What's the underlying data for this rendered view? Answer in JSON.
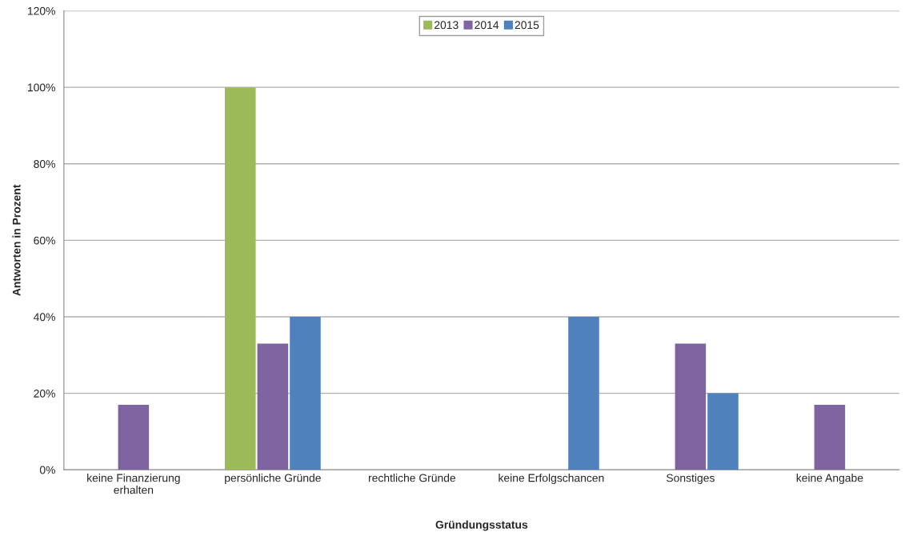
{
  "chart_data": {
    "type": "bar",
    "xlabel": "Gründungsstatus",
    "ylabel": "Antworten in Prozent",
    "categories": [
      "keine Finanzierung\nerhalten",
      "persönliche Gründe",
      "rechtliche Gründe",
      "keine Erfolgschancen",
      "Sonstiges",
      "keine Angabe"
    ],
    "series": [
      {
        "name": "2013",
        "color": "#9bbb59",
        "values": [
          0,
          100,
          0,
          0,
          0,
          0
        ]
      },
      {
        "name": "2014",
        "color": "#8064a2",
        "values": [
          17,
          33,
          0,
          0,
          33,
          17
        ]
      },
      {
        "name": "2015",
        "color": "#4f81bd",
        "values": [
          0,
          40,
          0,
          40,
          20,
          0
        ]
      }
    ],
    "ylim": [
      0,
      120
    ],
    "yticks": [
      {
        "value": 0,
        "label": "0%"
      },
      {
        "value": 20,
        "label": "20%"
      },
      {
        "value": 40,
        "label": "40%"
      },
      {
        "value": 60,
        "label": "60%"
      },
      {
        "value": 80,
        "label": "80%"
      },
      {
        "value": 100,
        "label": "100%"
      },
      {
        "value": 120,
        "label": "120%"
      }
    ],
    "grid": "y",
    "legend": "top"
  }
}
